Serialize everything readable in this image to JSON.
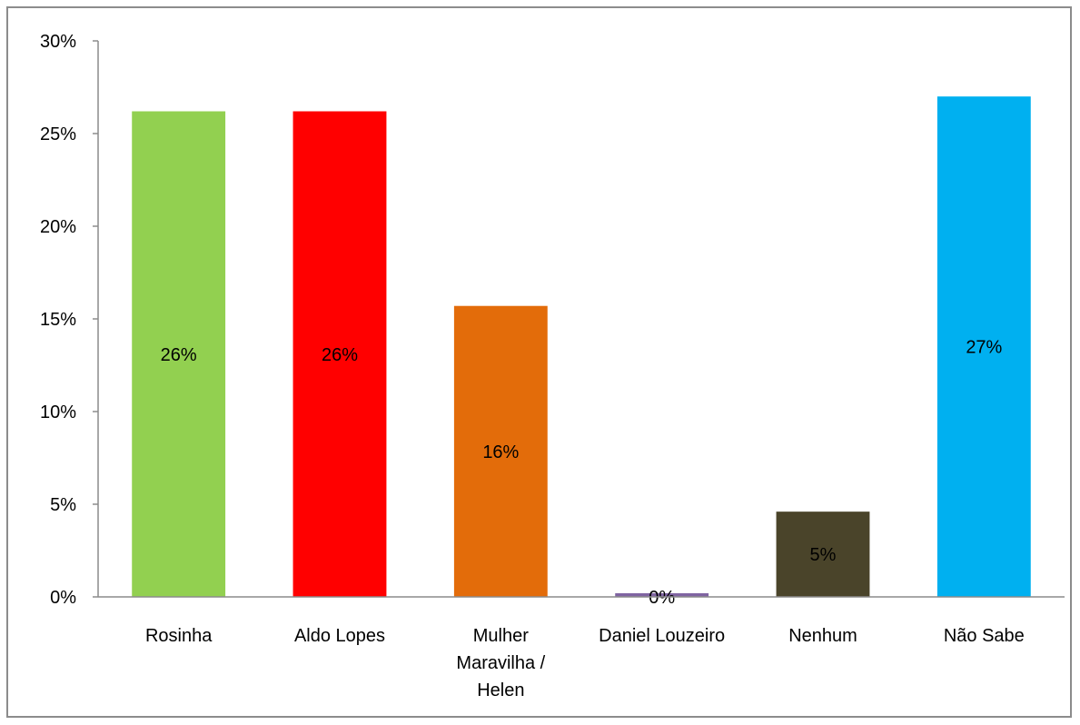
{
  "chart_data": {
    "type": "bar",
    "title": "",
    "xlabel": "",
    "ylabel": "",
    "ylim": [
      0,
      30
    ],
    "yticks": [
      "0%",
      "5%",
      "10%",
      "15%",
      "20%",
      "25%",
      "30%"
    ],
    "grid": false,
    "legend": "none",
    "categories": [
      [
        "Rosinha"
      ],
      [
        "Aldo Lopes"
      ],
      [
        "Mulher",
        "Maravilha /",
        "Helen"
      ],
      [
        "Daniel Louzeiro"
      ],
      [
        "Nenhum"
      ],
      [
        "Não Sabe"
      ]
    ],
    "values": [
      26.2,
      26.2,
      15.7,
      0.2,
      4.6,
      27.0
    ],
    "data_labels": [
      "26%",
      "26%",
      "16%",
      "0%",
      "5%",
      "27%"
    ],
    "colors": [
      "#92D050",
      "#FF0000",
      "#E36C0A",
      "#8064A2",
      "#4A442A",
      "#00B0F0"
    ]
  }
}
